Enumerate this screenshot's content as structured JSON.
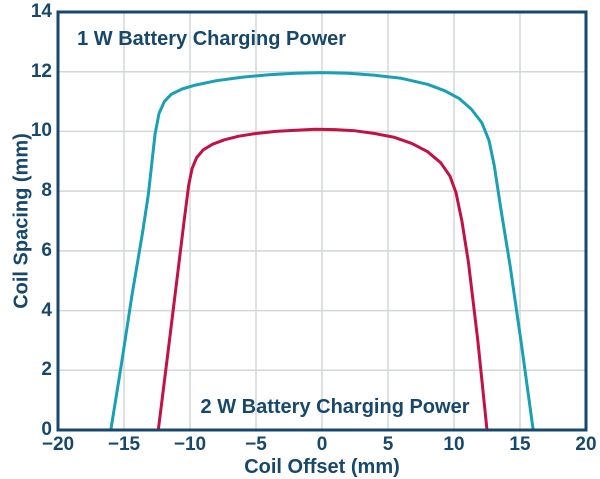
{
  "figure": {
    "background": "#ffffff",
    "text_color": "#17486B"
  },
  "chart_data": {
    "type": "line",
    "title": "",
    "xlabel": "Coil Offset (mm)",
    "ylabel": "Coil Spacing (mm)",
    "xlim": [
      -20,
      20
    ],
    "ylim": [
      0,
      14
    ],
    "grid": true,
    "legend_position": "none",
    "axis_color": "#17486B",
    "grid_color": "#d2d7d9",
    "x_ticks": [
      {
        "value": -20,
        "label": "−20"
      },
      {
        "value": -15,
        "label": "−15"
      },
      {
        "value": -10,
        "label": "−10"
      },
      {
        "value": -5,
        "label": "−5"
      },
      {
        "value": 0,
        "label": "0"
      },
      {
        "value": 5,
        "label": "5"
      },
      {
        "value": 10,
        "label": "10"
      },
      {
        "value": 15,
        "label": "15"
      },
      {
        "value": 20,
        "label": "20"
      }
    ],
    "y_ticks": [
      {
        "value": 0,
        "label": "0"
      },
      {
        "value": 2,
        "label": "2"
      },
      {
        "value": 4,
        "label": "4"
      },
      {
        "value": 6,
        "label": "6"
      },
      {
        "value": 8,
        "label": "8"
      },
      {
        "value": 10,
        "label": "10"
      },
      {
        "value": 12,
        "label": "12"
      },
      {
        "value": 14,
        "label": "14"
      }
    ],
    "series": [
      {
        "name": "1 W Battery Charging Power",
        "color": "#1AA0B5",
        "points": [
          [
            -16.0,
            0
          ],
          [
            -15.2,
            2.2
          ],
          [
            -14.4,
            4.5
          ],
          [
            -13.6,
            6.6
          ],
          [
            -13.15,
            7.9
          ],
          [
            -12.9,
            8.9
          ],
          [
            -12.65,
            9.9
          ],
          [
            -12.35,
            10.6
          ],
          [
            -11.95,
            11.0
          ],
          [
            -11.4,
            11.25
          ],
          [
            -10.6,
            11.42
          ],
          [
            -9.6,
            11.55
          ],
          [
            -8.0,
            11.7
          ],
          [
            -6.0,
            11.82
          ],
          [
            -4.0,
            11.9
          ],
          [
            -2.0,
            11.95
          ],
          [
            0.0,
            11.97
          ],
          [
            2.0,
            11.95
          ],
          [
            4.0,
            11.88
          ],
          [
            6.0,
            11.78
          ],
          [
            8.0,
            11.58
          ],
          [
            9.3,
            11.36
          ],
          [
            10.4,
            11.1
          ],
          [
            11.3,
            10.75
          ],
          [
            12.1,
            10.3
          ],
          [
            12.65,
            9.7
          ],
          [
            13.05,
            8.85
          ],
          [
            13.55,
            7.4
          ],
          [
            14.25,
            5.5
          ],
          [
            15.1,
            2.9
          ],
          [
            16.0,
            0
          ]
        ]
      },
      {
        "name": "2 W Battery Charging Power",
        "color": "#C11246",
        "points": [
          [
            -12.4,
            0
          ],
          [
            -11.7,
            2.5
          ],
          [
            -11.0,
            5.0
          ],
          [
            -10.45,
            7.0
          ],
          [
            -10.1,
            8.2
          ],
          [
            -9.85,
            8.75
          ],
          [
            -9.5,
            9.12
          ],
          [
            -9.0,
            9.38
          ],
          [
            -8.3,
            9.57
          ],
          [
            -7.4,
            9.72
          ],
          [
            -6.3,
            9.84
          ],
          [
            -5.0,
            9.93
          ],
          [
            -3.5,
            10.0
          ],
          [
            -2.0,
            10.04
          ],
          [
            -0.5,
            10.07
          ],
          [
            1.0,
            10.06
          ],
          [
            2.5,
            10.02
          ],
          [
            4.0,
            9.93
          ],
          [
            5.5,
            9.8
          ],
          [
            6.8,
            9.6
          ],
          [
            8.0,
            9.32
          ],
          [
            9.0,
            8.95
          ],
          [
            9.7,
            8.5
          ],
          [
            10.15,
            7.95
          ],
          [
            10.6,
            7.0
          ],
          [
            11.1,
            5.6
          ],
          [
            11.8,
            3.0
          ],
          [
            12.5,
            0
          ]
        ]
      }
    ],
    "annotations": [
      {
        "text": "1 W Battery Charging Power",
        "x": -18.55,
        "y": 13.1
      },
      {
        "text": "2 W Battery Charging Power",
        "x": -9.2,
        "y": 0.77
      }
    ]
  }
}
